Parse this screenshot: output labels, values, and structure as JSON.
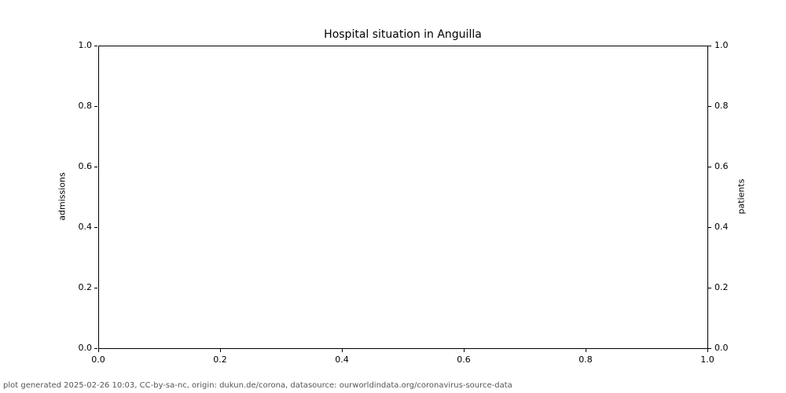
{
  "title": "Hospital situation in Anguilla",
  "footer": "plot generated 2025-02-26 10:03, CC-by-sa-nc, origin: dukun.de/corona, datasource: ourworldindata.org/coronavirus-source-data",
  "axes": {
    "x": {
      "ticks": [
        "0.0",
        "0.2",
        "0.4",
        "0.6",
        "0.8",
        "1.0"
      ]
    },
    "y_left": {
      "label": "admissions",
      "ticks": [
        "0.0",
        "0.2",
        "0.4",
        "0.6",
        "0.8",
        "1.0"
      ]
    },
    "y_right": {
      "label": "patients",
      "ticks": [
        "0.0",
        "0.2",
        "0.4",
        "0.6",
        "0.8",
        "1.0"
      ]
    }
  },
  "colors": {
    "axis": "#000000",
    "footer_text": "#555555",
    "background": "#ffffff"
  },
  "chart_data": {
    "type": "line",
    "title": "Hospital situation in Anguilla",
    "xlabel": "",
    "ylabel_left": "admissions",
    "ylabel_right": "patients",
    "xlim": [
      0.0,
      1.0
    ],
    "ylim_left": [
      0.0,
      1.0
    ],
    "ylim_right": [
      0.0,
      1.0
    ],
    "x_ticks": [
      0.0,
      0.2,
      0.4,
      0.6,
      0.8,
      1.0
    ],
    "y_ticks_left": [
      0.0,
      0.2,
      0.4,
      0.6,
      0.8,
      1.0
    ],
    "y_ticks_right": [
      0.0,
      0.2,
      0.4,
      0.6,
      0.8,
      1.0
    ],
    "grid": false,
    "legend": null,
    "series": [],
    "plot_empty": true
  }
}
